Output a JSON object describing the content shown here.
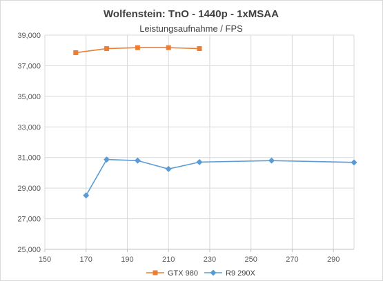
{
  "chart_data": {
    "type": "line",
    "title": "Wolfenstein: TnO - 1440p - 1xMSAA",
    "subtitle": "Leistungsaufnahme / FPS",
    "xlim": [
      150,
      300
    ],
    "ylim": [
      25000,
      39000
    ],
    "x_ticks": [
      "150",
      "170",
      "190",
      "210",
      "230",
      "250",
      "270",
      "290"
    ],
    "y_ticks": [
      "25,000",
      "27,000",
      "29,000",
      "31,000",
      "33,000",
      "35,000",
      "37,000",
      "39,000"
    ],
    "grid": true,
    "legend_position": "bottom",
    "series": [
      {
        "name": "GTX 980",
        "color": "#ed7d31",
        "marker": "square",
        "x": [
          165,
          180,
          195,
          210,
          225
        ],
        "y": [
          37850,
          38120,
          38180,
          38180,
          38120
        ]
      },
      {
        "name": "R9 290X",
        "color": "#5b9bd5",
        "marker": "diamond",
        "x": [
          170,
          180,
          195,
          210,
          225,
          260,
          300
        ],
        "y": [
          28520,
          30870,
          30800,
          30250,
          30700,
          30800,
          30680
        ]
      }
    ]
  }
}
